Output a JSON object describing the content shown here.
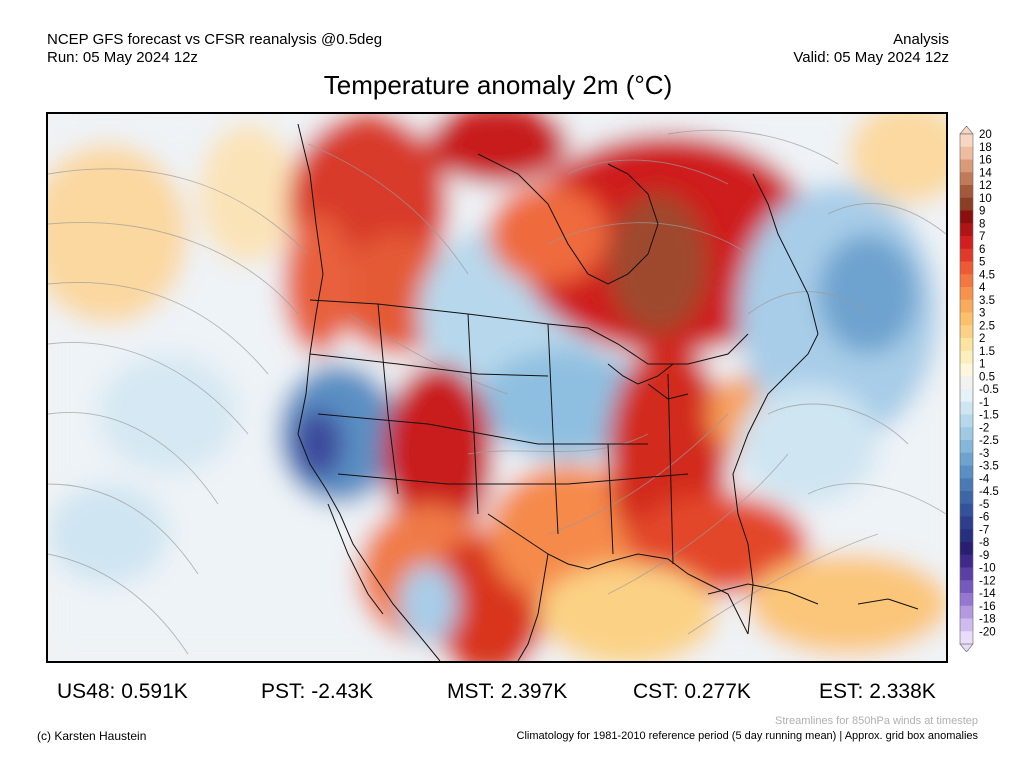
{
  "header": {
    "source_line": "NCEP GFS forecast vs CFSR reanalysis @0.5deg",
    "run_line": "Run: 05 May 2024 12z",
    "type_line": "Analysis",
    "valid_line": "Valid: 05 May 2024 12z",
    "title": "Temperature anomaly 2m (°C)"
  },
  "colorbar": {
    "labels": [
      "20",
      "18",
      "16",
      "14",
      "12",
      "10",
      "9",
      "8",
      "7",
      "6",
      "5",
      "4.5",
      "4",
      "3.5",
      "3",
      "2.5",
      "2",
      "1.5",
      "1",
      "0.5",
      "-0.5",
      "-1",
      "-1.5",
      "-2",
      "-2.5",
      "-3",
      "-3.5",
      "-4",
      "-4.5",
      "-5",
      "-6",
      "-7",
      "-8",
      "-9",
      "-10",
      "-12",
      "-14",
      "-16",
      "-18",
      "-20"
    ],
    "colors": [
      "#f7d6c4",
      "#eebc9f",
      "#d99a78",
      "#c07a58",
      "#a5583b",
      "#8c3e24",
      "#8c0f0f",
      "#b01515",
      "#cf1f1f",
      "#e03a2a",
      "#ef5a36",
      "#f37742",
      "#f6924e",
      "#f8ab5c",
      "#fac06c",
      "#fbd285",
      "#fce39f",
      "#fdeebd",
      "#fff7dc",
      "#f2f2f2",
      "#e6f1f8",
      "#cfe5f2",
      "#b7d8ec",
      "#9fcae4",
      "#85b7da",
      "#6ea3cf",
      "#5a8fc3",
      "#4a7ab5",
      "#3d66a7",
      "#34529a",
      "#2d3f8c",
      "#27307e",
      "#281f70",
      "#3f2a8a",
      "#5a40a5",
      "#7659bd",
      "#9577d1",
      "#b498e0",
      "#d0bbee",
      "#e8dcf8"
    ]
  },
  "stats": [
    {
      "label": "US48:",
      "value": "0.591K"
    },
    {
      "label": "PST:",
      "value": "-2.43K"
    },
    {
      "label": "MST:",
      "value": "2.397K"
    },
    {
      "label": "CST:",
      "value": "0.277K"
    },
    {
      "label": "EST:",
      "value": "2.338K"
    }
  ],
  "footer": {
    "credit": "(c) Karsten Haustein",
    "streamlines_note": "Streamlines for 850hPa winds at timestep",
    "climatology_note": "Climatology for 1981-2010 reference period (5 day running mean) | Approx. grid box anomalies"
  }
}
